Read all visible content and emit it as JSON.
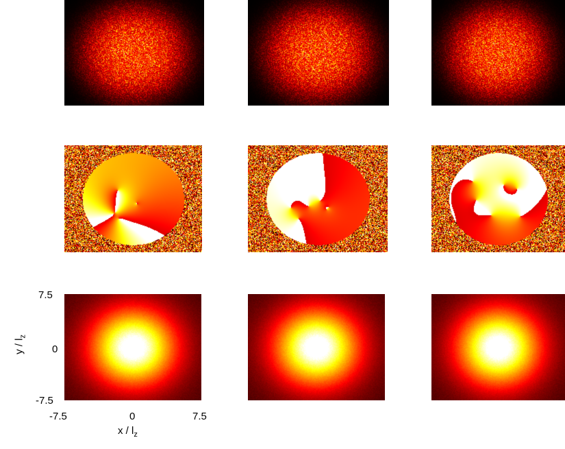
{
  "chart_data": {
    "type": "heatmap",
    "layout": "3x3 grid of image panels",
    "colormap": "hot (black-red-orange-yellow-white)",
    "rows": [
      {
        "row": "top",
        "content": "noisy granular density, elliptical envelope"
      },
      {
        "row": "middle",
        "content": "phase map with vortex branch cuts on random background"
      },
      {
        "row": "bottom",
        "content": "smooth elliptical Gaussian density"
      }
    ],
    "xlabel": {
      "main": "x / l",
      "sub": "z"
    },
    "ylabel": {
      "main": "y / l",
      "sub": "z"
    },
    "xticks": [
      "-7.5",
      "0",
      "7.5"
    ],
    "yticks": [
      "7.5",
      "0",
      "-7.5"
    ],
    "xlim": [
      -7.5,
      7.5
    ],
    "ylim": [
      -7.5,
      7.5
    ],
    "colors": {
      "dark": "#1a0000",
      "mid": "#c4200a",
      "bright": "#ffcc33",
      "peak": "#ffffe0"
    }
  }
}
